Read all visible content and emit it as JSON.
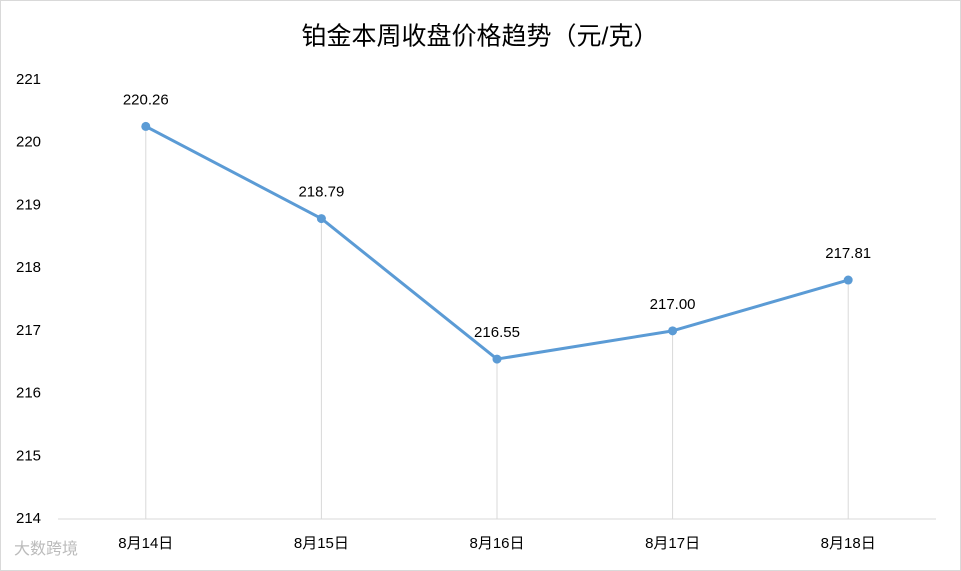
{
  "chart_data": {
    "type": "line",
    "title": "铂金本周收盘价格趋势（元/克）",
    "categories": [
      "8月14日",
      "8月15日",
      "8月16日",
      "8月17日",
      "8月18日"
    ],
    "values": [
      220.26,
      218.79,
      216.55,
      217.0,
      217.81
    ],
    "value_labels": [
      "220.26",
      "218.79",
      "216.55",
      "217.00",
      "217.81"
    ],
    "color": "#5b9bd5",
    "ylim": [
      214,
      221
    ],
    "yticks": [
      214,
      215,
      216,
      217,
      218,
      219,
      220,
      221
    ],
    "drop_lines": true,
    "watermark": "大数跨境"
  }
}
